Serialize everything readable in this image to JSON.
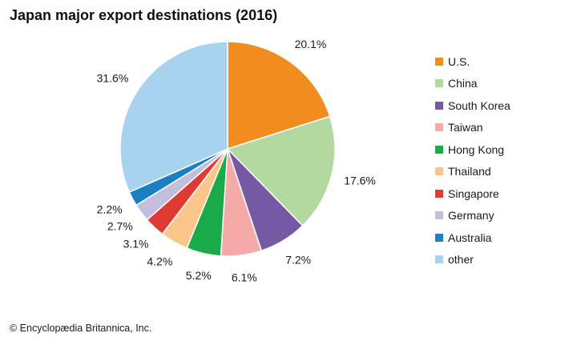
{
  "title": "Japan major export destinations (2016)",
  "copyright": "© Encyclopædia Britannica, Inc.",
  "chart_data": {
    "type": "pie",
    "title": "Japan major export destinations (2016)",
    "start_angle_deg": 0,
    "direction": "clockwise",
    "legend_position": "right",
    "slices": [
      {
        "label": "U.S.",
        "value": 20.1,
        "display": "20.1%",
        "color": "#f18d1f"
      },
      {
        "label": "China",
        "value": 17.6,
        "display": "17.6%",
        "color": "#b3d9a0"
      },
      {
        "label": "South Korea",
        "value": 7.2,
        "display": "7.2%",
        "color": "#7559a5"
      },
      {
        "label": "Taiwan",
        "value": 6.1,
        "display": "6.1%",
        "color": "#f4aaa8"
      },
      {
        "label": "Hong Kong",
        "value": 5.2,
        "display": "5.2%",
        "color": "#1aaa4a"
      },
      {
        "label": "Thailand",
        "value": 4.2,
        "display": "4.2%",
        "color": "#fbc68c"
      },
      {
        "label": "Singapore",
        "value": 3.1,
        "display": "3.1%",
        "color": "#e03a35"
      },
      {
        "label": "Germany",
        "value": 2.7,
        "display": "2.7%",
        "color": "#c4bedd"
      },
      {
        "label": "Australia",
        "value": 2.2,
        "display": "2.2%",
        "color": "#1c7fc0"
      },
      {
        "label": "other",
        "value": 31.6,
        "display": "31.6%",
        "color": "#a9d2ee"
      }
    ]
  }
}
